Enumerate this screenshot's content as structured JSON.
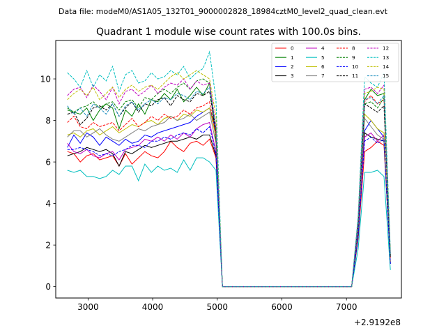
{
  "header": {
    "suptitle": "Data file: modeM0/AS1A05_132T01_9000002828_18984cztM0_level2_quad_clean.evt"
  },
  "chart_data": {
    "type": "line",
    "title": "Quadrant 1 module wise count rates with 100.0s bins.",
    "xlabel": "",
    "ylabel": "",
    "x_offset_label": "+2.9192e8",
    "xlim": [
      2500,
      7850
    ],
    "ylim": [
      -0.55,
      11.85
    ],
    "xticks": [
      3000,
      4000,
      5000,
      6000,
      7000
    ],
    "yticks": [
      0,
      2,
      4,
      6,
      8,
      10
    ],
    "grid": false,
    "legend": {
      "placement": "top-right",
      "columns": 4
    },
    "x": [
      2680,
      2780,
      2880,
      2980,
      3080,
      3180,
      3280,
      3380,
      3480,
      3580,
      3680,
      3780,
      3880,
      3980,
      4080,
      4180,
      4280,
      4380,
      4480,
      4580,
      4680,
      4780,
      4880,
      4980,
      5080,
      5180,
      5280,
      5380,
      5480,
      5580,
      5680,
      5780,
      5880,
      5980,
      6080,
      6180,
      6280,
      6380,
      6480,
      6580,
      6680,
      6780,
      6880,
      6980,
      7080,
      7180,
      7280,
      7380,
      7480,
      7580,
      7680
    ],
    "series": [
      {
        "name": "0",
        "color": "#ff0000",
        "dash": "solid",
        "values": [
          6.5,
          6.4,
          6.0,
          6.3,
          6.4,
          6.1,
          6.2,
          6.3,
          5.8,
          6.4,
          5.9,
          6.2,
          6.5,
          6.3,
          6.2,
          6.5,
          7.0,
          6.7,
          6.5,
          6.9,
          7.0,
          6.8,
          7.1,
          6.2,
          0.0,
          0.0,
          0.0,
          0.0,
          0.0,
          0.0,
          0.0,
          0.0,
          0.0,
          0.0,
          0.0,
          0.0,
          0.0,
          0.0,
          0.0,
          0.0,
          0.0,
          0.0,
          0.0,
          0.0,
          0.0,
          2.3,
          6.5,
          6.7,
          7.0,
          6.8,
          1.2
        ]
      },
      {
        "name": "1",
        "color": "#008000",
        "dash": "solid",
        "values": [
          8.5,
          8.4,
          8.3,
          8.6,
          8.0,
          8.5,
          8.8,
          8.6,
          7.6,
          8.5,
          8.2,
          8.8,
          8.3,
          9.0,
          8.9,
          9.3,
          9.0,
          9.5,
          8.9,
          9.2,
          9.6,
          9.2,
          9.8,
          7.0,
          0.0,
          0.0,
          0.0,
          0.0,
          0.0,
          0.0,
          0.0,
          0.0,
          0.0,
          0.0,
          0.0,
          0.0,
          0.0,
          0.0,
          0.0,
          0.0,
          0.0,
          0.0,
          0.0,
          0.0,
          0.0,
          3.0,
          9.0,
          9.5,
          9.2,
          9.3,
          1.5
        ]
      },
      {
        "name": "2",
        "color": "#0000ff",
        "dash": "solid",
        "values": [
          6.7,
          7.3,
          6.9,
          7.4,
          7.2,
          6.8,
          7.2,
          7.0,
          6.8,
          7.1,
          6.9,
          7.0,
          7.3,
          7.2,
          7.4,
          7.5,
          7.6,
          7.7,
          7.8,
          7.9,
          8.2,
          8.4,
          8.6,
          7.5,
          0.0,
          0.0,
          0.0,
          0.0,
          0.0,
          0.0,
          0.0,
          0.0,
          0.0,
          0.0,
          0.0,
          0.0,
          0.0,
          0.0,
          0.0,
          0.0,
          0.0,
          0.0,
          0.0,
          0.0,
          0.0,
          2.6,
          7.5,
          8.0,
          7.6,
          7.2,
          1.1
        ]
      },
      {
        "name": "3",
        "color": "#000000",
        "dash": "solid",
        "values": [
          6.3,
          6.4,
          6.5,
          6.7,
          6.6,
          6.5,
          6.6,
          6.4,
          5.8,
          6.5,
          6.4,
          6.6,
          6.8,
          6.7,
          6.8,
          6.9,
          7.0,
          7.0,
          7.1,
          7.2,
          7.1,
          7.3,
          7.3,
          6.3,
          0.0,
          0.0,
          0.0,
          0.0,
          0.0,
          0.0,
          0.0,
          0.0,
          0.0,
          0.0,
          0.0,
          0.0,
          0.0,
          0.0,
          0.0,
          0.0,
          0.0,
          0.0,
          0.0,
          0.0,
          0.0,
          2.4,
          7.4,
          7.2,
          7.1,
          7.0,
          1.1
        ]
      },
      {
        "name": "4",
        "color": "#bf00bf",
        "dash": "solid",
        "values": [
          6.9,
          6.5,
          6.4,
          6.6,
          6.3,
          6.2,
          6.4,
          6.5,
          6.1,
          6.6,
          6.7,
          6.8,
          7.1,
          7.0,
          7.2,
          7.0,
          7.3,
          7.1,
          7.4,
          7.2,
          7.6,
          7.8,
          7.9,
          6.5,
          0.0,
          0.0,
          0.0,
          0.0,
          0.0,
          0.0,
          0.0,
          0.0,
          0.0,
          0.0,
          0.0,
          0.0,
          0.0,
          0.0,
          0.0,
          0.0,
          0.0,
          0.0,
          0.0,
          0.0,
          0.0,
          2.6,
          7.2,
          7.4,
          7.0,
          7.3,
          1.2
        ]
      },
      {
        "name": "5",
        "color": "#00bfbf",
        "dash": "solid",
        "values": [
          5.6,
          5.5,
          5.6,
          5.3,
          5.3,
          5.2,
          5.3,
          5.6,
          5.4,
          5.8,
          5.8,
          5.1,
          5.9,
          5.5,
          5.8,
          5.6,
          5.7,
          5.5,
          6.1,
          5.6,
          6.2,
          6.2,
          6.0,
          5.6,
          0.0,
          0.0,
          0.0,
          0.0,
          0.0,
          0.0,
          0.0,
          0.0,
          0.0,
          0.0,
          0.0,
          0.0,
          0.0,
          0.0,
          0.0,
          0.0,
          0.0,
          0.0,
          0.0,
          0.0,
          0.0,
          1.8,
          5.5,
          5.5,
          5.6,
          5.3,
          0.8
        ]
      },
      {
        "name": "6",
        "color": "#bfbf00",
        "dash": "solid",
        "values": [
          7.3,
          7.4,
          7.2,
          7.5,
          7.6,
          7.3,
          7.5,
          7.7,
          7.4,
          7.6,
          7.8,
          7.7,
          7.9,
          8.0,
          7.8,
          8.1,
          8.2,
          8.0,
          8.3,
          8.2,
          8.5,
          8.4,
          8.6,
          7.2,
          0.0,
          0.0,
          0.0,
          0.0,
          0.0,
          0.0,
          0.0,
          0.0,
          0.0,
          0.0,
          0.0,
          0.0,
          0.0,
          0.0,
          0.0,
          0.0,
          0.0,
          0.0,
          0.0,
          0.0,
          0.0,
          2.8,
          8.3,
          8.0,
          7.6,
          7.4,
          1.2
        ]
      },
      {
        "name": "7",
        "color": "#808080",
        "dash": "solid",
        "values": [
          7.2,
          7.5,
          7.5,
          7.2,
          7.4,
          7.6,
          7.3,
          7.1,
          7.0,
          7.2,
          7.4,
          7.6,
          7.5,
          7.7,
          7.8,
          7.9,
          8.2,
          8.0,
          8.1,
          8.3,
          8.0,
          8.2,
          8.4,
          6.9,
          0.0,
          0.0,
          0.0,
          0.0,
          0.0,
          0.0,
          0.0,
          0.0,
          0.0,
          0.0,
          0.0,
          0.0,
          0.0,
          0.0,
          0.0,
          0.0,
          0.0,
          0.0,
          0.0,
          0.0,
          0.0,
          2.7,
          8.1,
          7.7,
          7.3,
          7.1,
          1.1
        ]
      },
      {
        "name": "8",
        "color": "#ff0000",
        "dash": "dashed",
        "values": [
          7.9,
          8.2,
          7.7,
          7.6,
          7.9,
          7.7,
          7.8,
          7.9,
          7.5,
          7.8,
          8.1,
          7.7,
          7.9,
          8.2,
          8.0,
          8.3,
          8.1,
          8.2,
          8.5,
          8.3,
          8.6,
          8.7,
          8.9,
          7.3,
          0.0,
          0.0,
          0.0,
          0.0,
          0.0,
          0.0,
          0.0,
          0.0,
          0.0,
          0.0,
          0.0,
          0.0,
          0.0,
          0.0,
          0.0,
          0.0,
          0.0,
          0.0,
          0.0,
          0.0,
          0.0,
          3.0,
          8.9,
          9.2,
          8.8,
          9.0,
          1.4
        ]
      },
      {
        "name": "9",
        "color": "#008000",
        "dash": "dashed",
        "values": [
          8.6,
          8.4,
          8.6,
          8.7,
          8.9,
          8.6,
          8.8,
          8.9,
          8.5,
          8.9,
          9.0,
          8.6,
          9.1,
          9.0,
          9.3,
          9.5,
          9.3,
          9.6,
          9.8,
          9.5,
          9.9,
          10.0,
          9.8,
          7.5,
          0.0,
          0.0,
          0.0,
          0.0,
          0.0,
          0.0,
          0.0,
          0.0,
          0.0,
          0.0,
          0.0,
          0.0,
          0.0,
          0.0,
          0.0,
          0.0,
          0.0,
          0.0,
          0.0,
          0.0,
          0.0,
          3.1,
          8.8,
          8.9,
          8.6,
          9.1,
          1.5
        ]
      },
      {
        "name": "10",
        "color": "#0000ff",
        "dash": "dashed",
        "values": [
          6.6,
          6.6,
          6.7,
          6.6,
          6.5,
          6.3,
          6.4,
          6.3,
          6.5,
          6.6,
          6.8,
          6.8,
          6.7,
          7.0,
          7.0,
          7.2,
          7.1,
          7.3,
          7.4,
          7.3,
          7.6,
          7.4,
          7.7,
          6.4,
          0.0,
          0.0,
          0.0,
          0.0,
          0.0,
          0.0,
          0.0,
          0.0,
          0.0,
          0.0,
          0.0,
          0.0,
          0.0,
          0.0,
          0.0,
          0.0,
          0.0,
          0.0,
          0.0,
          0.0,
          0.0,
          2.4,
          7.0,
          7.2,
          6.9,
          7.1,
          1.1
        ]
      },
      {
        "name": "11",
        "color": "#000000",
        "dash": "dashed",
        "values": [
          8.3,
          8.4,
          7.8,
          8.1,
          8.6,
          8.7,
          8.5,
          8.8,
          8.2,
          8.6,
          8.9,
          8.4,
          8.8,
          8.7,
          9.0,
          9.1,
          8.7,
          9.2,
          9.0,
          8.9,
          9.3,
          9.2,
          9.4,
          7.4,
          0.0,
          0.0,
          0.0,
          0.0,
          0.0,
          0.0,
          0.0,
          0.0,
          0.0,
          0.0,
          0.0,
          0.0,
          0.0,
          0.0,
          0.0,
          0.0,
          0.0,
          0.0,
          0.0,
          0.0,
          0.0,
          3.0,
          8.8,
          8.6,
          8.4,
          8.7,
          1.4
        ]
      },
      {
        "name": "12",
        "color": "#bf00bf",
        "dash": "dashed",
        "values": [
          9.2,
          9.5,
          9.6,
          9.1,
          9.7,
          9.4,
          9.0,
          9.6,
          8.8,
          9.4,
          9.5,
          9.2,
          9.4,
          9.7,
          9.3,
          9.6,
          9.8,
          9.7,
          10.0,
          9.5,
          9.9,
          9.7,
          9.8,
          7.7,
          0.0,
          0.0,
          0.0,
          0.0,
          0.0,
          0.0,
          0.0,
          0.0,
          0.0,
          0.0,
          0.0,
          0.0,
          0.0,
          0.0,
          0.0,
          0.0,
          0.0,
          0.0,
          0.0,
          0.0,
          0.0,
          3.3,
          9.5,
          9.6,
          9.3,
          9.7,
          1.6
        ]
      },
      {
        "name": "13",
        "color": "#00bfbf",
        "dash": "dashed",
        "values": [
          10.3,
          10.0,
          9.6,
          10.4,
          9.6,
          10.2,
          9.9,
          10.6,
          9.4,
          10.2,
          10.4,
          9.8,
          9.9,
          10.3,
          10.0,
          10.1,
          10.4,
          10.2,
          10.6,
          10.0,
          10.3,
          10.5,
          11.3,
          9.0,
          0.0,
          0.0,
          0.0,
          0.0,
          0.0,
          0.0,
          0.0,
          0.0,
          0.0,
          0.0,
          0.0,
          0.0,
          0.0,
          0.0,
          0.0,
          0.0,
          0.0,
          0.0,
          0.0,
          0.0,
          0.0,
          3.4,
          10.1,
          9.8,
          9.6,
          10.3,
          1.7
        ]
      },
      {
        "name": "14",
        "color": "#bfbf00",
        "dash": "dashed",
        "values": [
          9.0,
          9.3,
          9.5,
          9.2,
          9.6,
          9.0,
          9.3,
          9.6,
          9.1,
          9.5,
          9.7,
          9.4,
          9.6,
          9.7,
          9.5,
          9.8,
          10.1,
          10.3,
          10.0,
          10.2,
          10.4,
          10.2,
          10.0,
          8.2,
          0.0,
          0.0,
          0.0,
          0.0,
          0.0,
          0.0,
          0.0,
          0.0,
          0.0,
          0.0,
          0.0,
          0.0,
          0.0,
          0.0,
          0.0,
          0.0,
          0.0,
          0.0,
          0.0,
          0.0,
          0.0,
          3.2,
          9.3,
          9.4,
          9.6,
          9.5,
          1.6
        ]
      },
      {
        "name": "15",
        "color": "#1f8fbf",
        "dash": "dashed",
        "values": [
          8.7,
          8.3,
          8.6,
          8.2,
          8.8,
          8.6,
          8.3,
          8.8,
          8.2,
          8.7,
          8.9,
          8.5,
          8.8,
          9.0,
          8.8,
          9.1,
          9.0,
          9.3,
          9.2,
          9.0,
          9.4,
          9.3,
          9.6,
          7.6,
          0.0,
          0.0,
          0.0,
          0.0,
          0.0,
          0.0,
          0.0,
          0.0,
          0.0,
          0.0,
          0.0,
          0.0,
          0.0,
          0.0,
          0.0,
          0.0,
          0.0,
          0.0,
          0.0,
          0.0,
          0.0,
          3.1,
          9.0,
          9.1,
          8.8,
          9.2,
          1.5
        ]
      }
    ]
  }
}
